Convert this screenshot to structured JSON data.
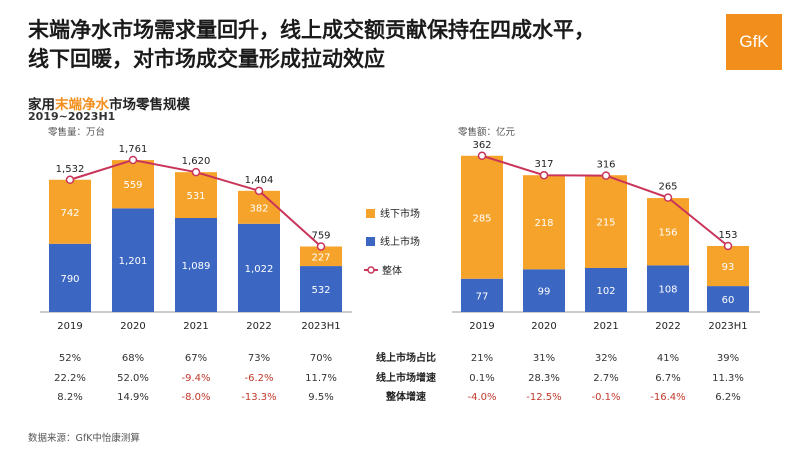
{
  "header": {
    "headline_line1": "末端净水市场需求量回升，线上成交额贡献保持在四成水平，",
    "headline_line2": "线下回暖，对市场成交量形成拉动效应",
    "logo_text": "GfK"
  },
  "subtitle": {
    "prefix": "家用",
    "highlight": "末端净水",
    "suffix": "市场零售规模",
    "period": "2019~2023H1"
  },
  "legend": {
    "offline": "线下市场",
    "online": "线上市场",
    "total": "整体"
  },
  "colors": {
    "offline": "#f6a32b",
    "online": "#3b66c2",
    "total": "#c9355a",
    "positive_text": "#333333",
    "negative_text": "#c0392b"
  },
  "chart_data": [
    {
      "type": "bar",
      "stacked": true,
      "unit_label": "零售量：万台",
      "categories": [
        "2019",
        "2020",
        "2021",
        "2022",
        "2023H1"
      ],
      "series": [
        {
          "name": "线上市场",
          "values": [
            790,
            1201,
            1089,
            1022,
            532
          ]
        },
        {
          "name": "线下市场",
          "values": [
            742,
            559,
            531,
            382,
            227
          ]
        }
      ],
      "totals": {
        "name": "整体",
        "values": [
          1532,
          1761,
          1620,
          1404,
          759
        ]
      },
      "value_labels": {
        "online": [
          "790",
          "1,201",
          "1,089",
          "1,022",
          "532"
        ],
        "offline": [
          "742",
          "559",
          "531",
          "382",
          "227"
        ],
        "totals": [
          "1,532",
          "1,761",
          "1,620",
          "1,404",
          "759"
        ]
      },
      "ylim": [
        0,
        1900
      ],
      "table": {
        "online_share": [
          "52%",
          "68%",
          "67%",
          "73%",
          "70%"
        ],
        "online_growth": [
          "22.2%",
          "52.0%",
          "-9.4%",
          "-6.2%",
          "11.7%"
        ],
        "total_growth": [
          "8.2%",
          "14.9%",
          "-8.0%",
          "-13.3%",
          "9.5%"
        ]
      }
    },
    {
      "type": "bar",
      "stacked": true,
      "unit_label": "零售额：亿元",
      "categories": [
        "2019",
        "2020",
        "2021",
        "2022",
        "2023H1"
      ],
      "series": [
        {
          "name": "线上市场",
          "values": [
            77,
            99,
            102,
            108,
            60
          ]
        },
        {
          "name": "线下市场",
          "values": [
            285,
            218,
            215,
            156,
            93
          ]
        }
      ],
      "totals": {
        "name": "整体",
        "values": [
          362,
          317,
          316,
          265,
          153
        ]
      },
      "value_labels": {
        "online": [
          "77",
          "99",
          "102",
          "108",
          "60"
        ],
        "offline": [
          "285",
          "218",
          "215",
          "156",
          "93"
        ],
        "totals": [
          "362",
          "317",
          "316",
          "265",
          "153"
        ]
      },
      "ylim": [
        0,
        380
      ],
      "table": {
        "online_share": [
          "21%",
          "31%",
          "32%",
          "41%",
          "39%"
        ],
        "online_growth": [
          "0.1%",
          "28.3%",
          "2.7%",
          "6.7%",
          "11.3%"
        ],
        "total_growth": [
          "-4.0%",
          "-12.5%",
          "-0.1%",
          "-16.4%",
          "6.2%"
        ]
      }
    }
  ],
  "row_labels": {
    "online_share": "线上市场占比",
    "online_growth": "线上市场增速",
    "total_growth": "整体增速"
  },
  "source": "数据来源：GfK中怡康测算"
}
